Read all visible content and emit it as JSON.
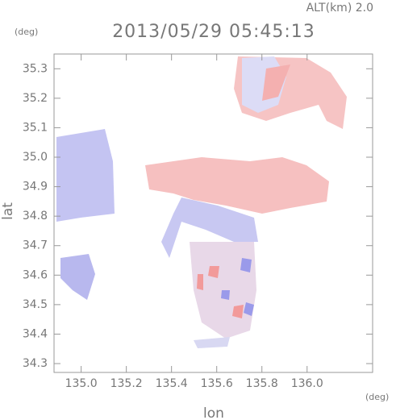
{
  "chart_data": {
    "type": "map",
    "header": "ALT(km) 2.0",
    "title": "2013/05/29 05:45:13",
    "x_label": "lon",
    "y_label": "lat",
    "x_unit": "(deg)",
    "y_unit": "(deg)",
    "xlim": [
      134.88,
      136.29
    ],
    "ylim": [
      34.27,
      35.35
    ],
    "xticks": [
      {
        "value": 135,
        "label": "135.0"
      },
      135.2,
      135.4,
      135.6,
      135.8,
      {
        "value": 136,
        "label": "136.0"
      }
    ],
    "yticks": [
      34.3,
      34.4,
      34.5,
      34.6,
      34.7,
      34.8,
      34.9,
      {
        "value": 35,
        "label": "35.0"
      },
      35.1,
      35.2,
      35.3
    ]
  }
}
